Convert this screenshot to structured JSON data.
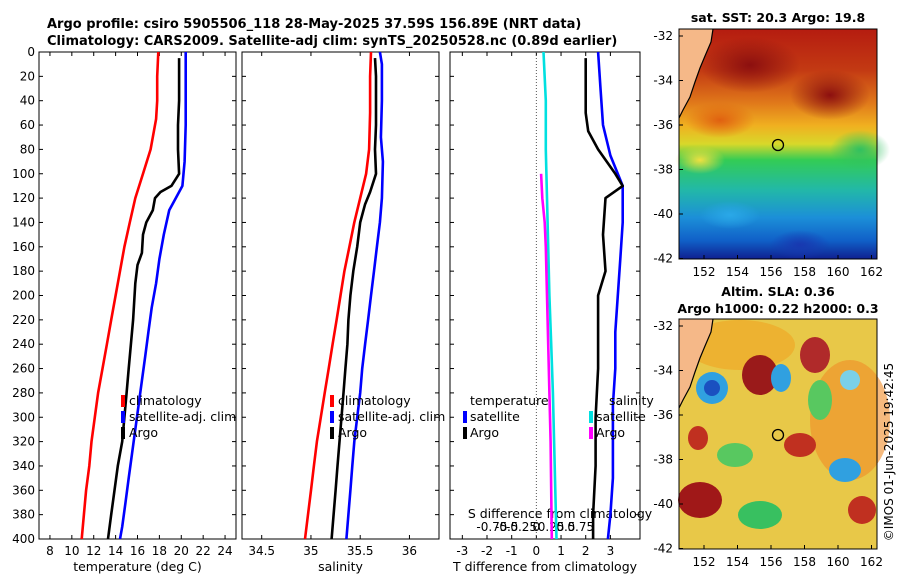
{
  "header": {
    "title_line1": "Argo profile: csiro 5905506_118 28-May-2025 37.59S 156.89E (NRT data)",
    "title_line2": "Climatology: CARS2009. Satellite-adj clim: synTS_20250528.nc (0.89d earlier)"
  },
  "chart_data": [
    {
      "type": "line",
      "id": "temperature",
      "xlabel": "temperature (deg C)",
      "ylabel": "",
      "xlim": [
        7,
        25
      ],
      "ylim": [
        400,
        0
      ],
      "xticks": [
        "8",
        "10",
        "12",
        "14",
        "16",
        "18",
        "20",
        "22",
        "24"
      ],
      "yticks": [
        "0",
        "20",
        "40",
        "60",
        "80",
        "100",
        "120",
        "140",
        "160",
        "180",
        "200",
        "220",
        "240",
        "260",
        "280",
        "300",
        "320",
        "340",
        "360",
        "380",
        "400"
      ],
      "legend": [
        "climatology",
        "satellite-adj. clim",
        "Argo"
      ],
      "series": [
        {
          "name": "climatology",
          "color": "#ff0000",
          "points": [
            [
              17.9,
              0
            ],
            [
              17.8,
              20
            ],
            [
              17.8,
              40
            ],
            [
              17.7,
              55
            ],
            [
              17.2,
              80
            ],
            [
              16.5,
              100
            ],
            [
              15.8,
              120
            ],
            [
              15.3,
              140
            ],
            [
              14.8,
              160
            ],
            [
              14.4,
              180
            ],
            [
              14.0,
              200
            ],
            [
              13.6,
              220
            ],
            [
              13.2,
              240
            ],
            [
              12.8,
              260
            ],
            [
              12.4,
              280
            ],
            [
              12.1,
              300
            ],
            [
              11.8,
              320
            ],
            [
              11.6,
              340
            ],
            [
              11.3,
              360
            ],
            [
              11.1,
              380
            ],
            [
              10.9,
              400
            ]
          ]
        },
        {
          "name": "satellite-adj. clim",
          "color": "#0000ff",
          "points": [
            [
              20.4,
              0
            ],
            [
              20.4,
              30
            ],
            [
              20.4,
              60
            ],
            [
              20.3,
              90
            ],
            [
              20.1,
              110
            ],
            [
              19.5,
              120
            ],
            [
              18.9,
              130
            ],
            [
              18.4,
              150
            ],
            [
              18.0,
              170
            ],
            [
              17.7,
              190
            ],
            [
              17.3,
              210
            ],
            [
              17.0,
              230
            ],
            [
              16.7,
              250
            ],
            [
              16.4,
              270
            ],
            [
              16.1,
              290
            ],
            [
              15.8,
              310
            ],
            [
              15.5,
              330
            ],
            [
              15.2,
              350
            ],
            [
              14.9,
              370
            ],
            [
              14.6,
              390
            ],
            [
              14.4,
              400
            ]
          ]
        },
        {
          "name": "Argo",
          "color": "#000000",
          "points": [
            [
              19.8,
              5
            ],
            [
              19.8,
              20
            ],
            [
              19.8,
              40
            ],
            [
              19.7,
              60
            ],
            [
              19.7,
              80
            ],
            [
              19.8,
              100
            ],
            [
              19.1,
              110
            ],
            [
              18.1,
              115
            ],
            [
              17.6,
              120
            ],
            [
              17.4,
              130
            ],
            [
              16.8,
              140
            ],
            [
              16.5,
              150
            ],
            [
              16.4,
              165
            ],
            [
              16.0,
              175
            ],
            [
              15.8,
              190
            ],
            [
              15.7,
              205
            ],
            [
              15.6,
              220
            ],
            [
              15.4,
              240
            ],
            [
              15.2,
              260
            ],
            [
              15.0,
              280
            ],
            [
              14.8,
              300
            ],
            [
              14.6,
              320
            ],
            [
              14.2,
              340
            ],
            [
              13.9,
              360
            ],
            [
              13.6,
              380
            ],
            [
              13.3,
              400
            ]
          ]
        }
      ]
    },
    {
      "type": "line",
      "id": "salinity",
      "xlabel": "salinity",
      "ylabel": "",
      "xlim": [
        34.3,
        36.3
      ],
      "ylim": [
        400,
        0
      ],
      "xticks": [
        "34.5",
        "35",
        "35.5",
        "36"
      ],
      "legend": [
        "climatology",
        "satellite-adj. clim",
        "Argo"
      ],
      "series": [
        {
          "name": "climatology",
          "color": "#ff0000",
          "points": [
            [
              35.61,
              0
            ],
            [
              35.6,
              20
            ],
            [
              35.6,
              50
            ],
            [
              35.59,
              80
            ],
            [
              35.56,
              100
            ],
            [
              35.5,
              120
            ],
            [
              35.44,
              140
            ],
            [
              35.39,
              160
            ],
            [
              35.34,
              180
            ],
            [
              35.3,
              200
            ],
            [
              35.26,
              220
            ],
            [
              35.22,
              240
            ],
            [
              35.18,
              260
            ],
            [
              35.14,
              280
            ],
            [
              35.1,
              300
            ],
            [
              35.06,
              320
            ],
            [
              35.03,
              340
            ],
            [
              35.0,
              360
            ],
            [
              34.97,
              380
            ],
            [
              34.94,
              400
            ]
          ]
        },
        {
          "name": "satellite-adj. clim",
          "color": "#0000ff",
          "points": [
            [
              35.7,
              0
            ],
            [
              35.72,
              10
            ],
            [
              35.72,
              40
            ],
            [
              35.71,
              70
            ],
            [
              35.73,
              90
            ],
            [
              35.72,
              120
            ],
            [
              35.7,
              140
            ],
            [
              35.67,
              160
            ],
            [
              35.64,
              180
            ],
            [
              35.61,
              200
            ],
            [
              35.58,
              220
            ],
            [
              35.55,
              240
            ],
            [
              35.52,
              260
            ],
            [
              35.5,
              280
            ],
            [
              35.47,
              300
            ],
            [
              35.44,
              320
            ],
            [
              35.42,
              340
            ],
            [
              35.4,
              360
            ],
            [
              35.38,
              380
            ],
            [
              35.36,
              400
            ]
          ]
        },
        {
          "name": "Argo",
          "color": "#000000",
          "points": [
            [
              35.65,
              5
            ],
            [
              35.66,
              20
            ],
            [
              35.66,
              60
            ],
            [
              35.65,
              80
            ],
            [
              35.66,
              100
            ],
            [
              35.6,
              115
            ],
            [
              35.55,
              125
            ],
            [
              35.5,
              140
            ],
            [
              35.47,
              160
            ],
            [
              35.43,
              180
            ],
            [
              35.4,
              200
            ],
            [
              35.38,
              220
            ],
            [
              35.37,
              240
            ],
            [
              35.35,
              260
            ],
            [
              35.33,
              280
            ],
            [
              35.31,
              300
            ],
            [
              35.29,
              320
            ],
            [
              35.27,
              340
            ],
            [
              35.25,
              360
            ],
            [
              35.23,
              380
            ],
            [
              35.21,
              400
            ]
          ]
        }
      ]
    },
    {
      "type": "line",
      "id": "difference",
      "xlabel": "T difference from climatology",
      "xlabel_top": "S difference from climatology",
      "xlim": [
        -3.5,
        4.2
      ],
      "ylim": [
        400,
        0
      ],
      "xticks": [
        "-3",
        "-2",
        "-1",
        "0",
        "1",
        "2",
        "3"
      ],
      "xticks_top": [
        "-0.75",
        "-0.5",
        "-0.25",
        "0",
        "0.25",
        "0.5",
        "0.75"
      ],
      "legend_title_left": "temperature",
      "legend_title_right": "salinity",
      "legend_left": [
        "satellite",
        "Argo"
      ],
      "legend_right": [
        "satellite",
        "Argo"
      ],
      "series": [
        {
          "name": "T satellite",
          "color": "#0000ff",
          "points": [
            [
              2.5,
              0
            ],
            [
              2.6,
              30
            ],
            [
              2.7,
              60
            ],
            [
              3.0,
              85
            ],
            [
              3.5,
              110
            ],
            [
              3.5,
              140
            ],
            [
              3.4,
              170
            ],
            [
              3.3,
              200
            ],
            [
              3.2,
              230
            ],
            [
              3.2,
              260
            ],
            [
              3.1,
              290
            ],
            [
              3.1,
              320
            ],
            [
              3.1,
              350
            ],
            [
              3.0,
              380
            ],
            [
              2.9,
              400
            ]
          ]
        },
        {
          "name": "T Argo",
          "color": "#000000",
          "points": [
            [
              2.0,
              5
            ],
            [
              2.0,
              30
            ],
            [
              2.0,
              50
            ],
            [
              2.1,
              65
            ],
            [
              2.5,
              80
            ],
            [
              3.2,
              100
            ],
            [
              3.5,
              110
            ],
            [
              2.8,
              120
            ],
            [
              2.7,
              150
            ],
            [
              2.8,
              180
            ],
            [
              2.5,
              200
            ],
            [
              2.5,
              230
            ],
            [
              2.5,
              260
            ],
            [
              2.4,
              300
            ],
            [
              2.4,
              340
            ],
            [
              2.3,
              380
            ],
            [
              2.3,
              400
            ]
          ]
        },
        {
          "name": "S satellite",
          "color": "#00e0e0",
          "points": [
            [
              0.12,
              0
            ],
            [
              0.16,
              40
            ],
            [
              0.16,
              80
            ],
            [
              0.18,
              120
            ],
            [
              0.2,
              160
            ],
            [
              0.22,
              200
            ],
            [
              0.25,
              240
            ],
            [
              0.28,
              280
            ],
            [
              0.3,
              320
            ],
            [
              0.32,
              360
            ],
            [
              0.34,
              400
            ]
          ]
        },
        {
          "name": "S Argo",
          "color": "#ff00ff",
          "points": [
            [
              0.08,
              100
            ],
            [
              0.1,
              120
            ],
            [
              0.14,
              140
            ],
            [
              0.16,
              160
            ],
            [
              0.18,
              200
            ],
            [
              0.2,
              240
            ],
            [
              0.22,
              280
            ],
            [
              0.24,
              320
            ],
            [
              0.25,
              360
            ],
            [
              0.26,
              400
            ]
          ]
        }
      ]
    }
  ],
  "maps": {
    "sst": {
      "title": "sat. SST: 20.3 Argo: 19.8",
      "yticks": [
        "-32",
        "-34",
        "-36",
        "-38",
        "-40",
        "-42"
      ],
      "xticks": [
        "152",
        "154",
        "156",
        "158",
        "160",
        "162"
      ]
    },
    "sla": {
      "title_line1": "Altim. SLA: 0.36",
      "title_line2": "Argo h1000: 0.22 h2000: 0.3",
      "yticks": [
        "-32",
        "-34",
        "-36",
        "-38",
        "-40",
        "-42"
      ],
      "xticks": [
        "152",
        "154",
        "156",
        "158",
        "160",
        "162"
      ]
    },
    "float_position": {
      "lon": 156.89,
      "lat": -37.59
    }
  },
  "stamp": "©IMOS 01-Jun-2025 19:42:45"
}
